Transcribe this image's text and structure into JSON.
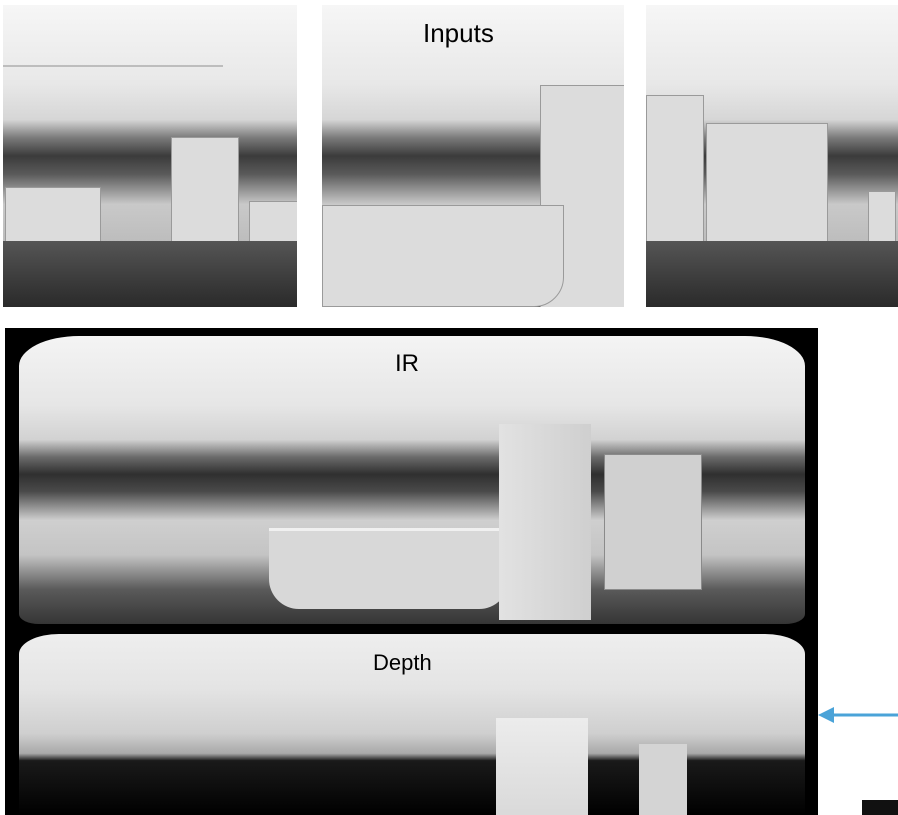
{
  "labels": {
    "inputs": "Inputs",
    "ir": "IR",
    "depth": "Depth"
  },
  "colors": {
    "arrow": "#4aa3d8",
    "frame": "#000000"
  },
  "icons": {
    "pointer": "left-arrow-icon"
  }
}
